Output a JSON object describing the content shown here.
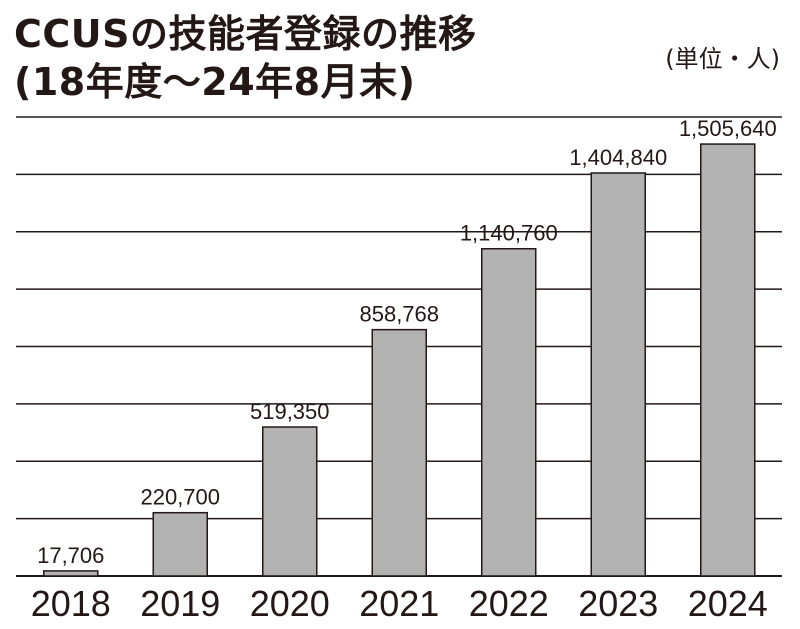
{
  "title": {
    "line1": "CCUSの技能者登録の推移",
    "line2": "(18年度〜24年8月末)"
  },
  "unit_label": "(単位・人)",
  "colors": {
    "bar": "#b2b2b2",
    "bar_stroke": "#231815",
    "grid": "#231815",
    "text": "#231815"
  },
  "chart_data": {
    "type": "bar",
    "title": "CCUSの技能者登録の推移(18年度〜24年8月末)",
    "unit": "(単位・人)",
    "categories": [
      "2018",
      "2019",
      "2020",
      "2021",
      "2022",
      "2023",
      "2024"
    ],
    "values": [
      17706,
      220700,
      519350,
      858768,
      1140760,
      1404840,
      1505640
    ],
    "value_labels": [
      "17,706",
      "220,700",
      "519,350",
      "858,768",
      "1,140,760",
      "1,404,840",
      "1,505,640"
    ],
    "xlabel": "",
    "ylabel": "",
    "ylim": [
      0,
      1600000
    ],
    "y_gridline_step": 200000,
    "grid": true,
    "legend": "none"
  }
}
